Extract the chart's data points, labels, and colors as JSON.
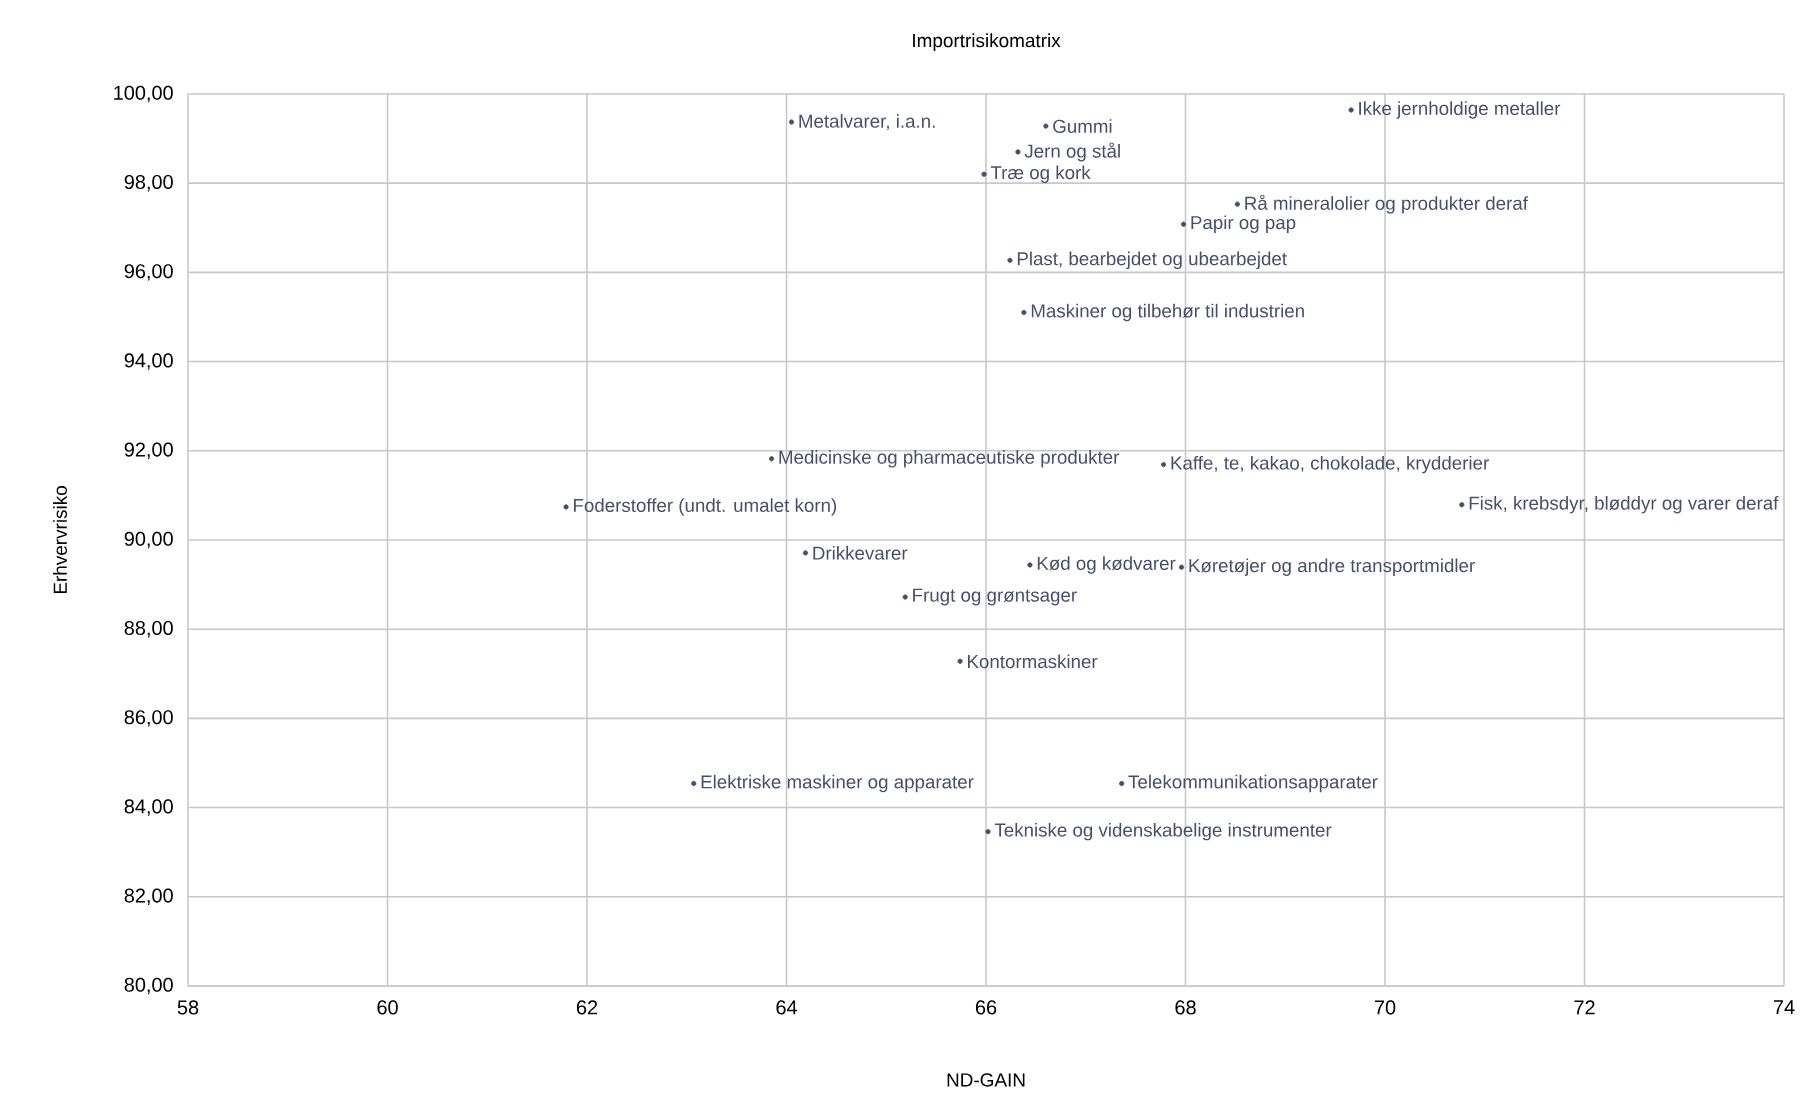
{
  "chart_data": {
    "type": "scatter",
    "title": "Importrisikomatrix",
    "xlabel": "ND-GAIN",
    "ylabel": "Erhvervrisiko",
    "xlim": [
      58,
      74
    ],
    "xticks": [
      58,
      60,
      62,
      64,
      66,
      68,
      70,
      72,
      74
    ],
    "ylim": [
      80,
      100
    ],
    "yticks": [
      {
        "value": 80,
        "label": "80,00"
      },
      {
        "value": 82,
        "label": "82,00"
      },
      {
        "value": 84,
        "label": "84,00"
      },
      {
        "value": 86,
        "label": "86,00"
      },
      {
        "value": 88,
        "label": "88,00"
      },
      {
        "value": 90,
        "label": "90,00"
      },
      {
        "value": 92,
        "label": "92,00"
      },
      {
        "value": 94,
        "label": "94,00"
      },
      {
        "value": 96,
        "label": "96,00"
      },
      {
        "value": 98,
        "label": "98,00"
      },
      {
        "value": 100,
        "label": "100,00"
      }
    ],
    "grid": true,
    "marker": "circle",
    "series": [
      {
        "color": "#44506a",
        "x": [
          64.05,
          66.6,
          66.32,
          65.98,
          69.66,
          68.52,
          67.98,
          66.24,
          66.38,
          63.85,
          67.78,
          61.79,
          70.77,
          64.19,
          66.44,
          67.96,
          65.19,
          65.74,
          63.07,
          67.36,
          66.02
        ],
        "values": [
          99.37,
          99.28,
          98.7,
          98.2,
          99.64,
          97.53,
          97.08,
          96.27,
          95.1,
          91.82,
          91.69,
          90.74,
          90.79,
          89.71,
          89.44,
          89.39,
          88.72,
          87.28,
          84.54,
          84.54,
          83.46
        ],
        "value_labels": [
          "Metalvarer, i.a.n.",
          "Gummi",
          "Jern og stål",
          "Træ og kork",
          "Ikke jernholdige metaller",
          "Rå mineralolier og produkter deraf",
          "Papir og pap",
          "Plast, bearbejdet og ubearbejdet",
          "Maskiner og tilbehør til industrien",
          "Medicinske og pharmaceutiske produkter",
          "Kaffe, te, kakao, chokolade, krydderier",
          "Foderstoffer (undt. umalet korn)",
          "Fisk, krebsdyr, bløddyr og varer deraf",
          "Drikkevarer",
          "Kød og kødvarer",
          "Køretøjer og andre transportmidler",
          "Frugt og grøntsager",
          "Kontormaskiner",
          "Elektriske maskiner og apparater",
          "Telekommunikationsapparater",
          "Tekniske og videnskabelige instrumenter"
        ]
      }
    ]
  }
}
